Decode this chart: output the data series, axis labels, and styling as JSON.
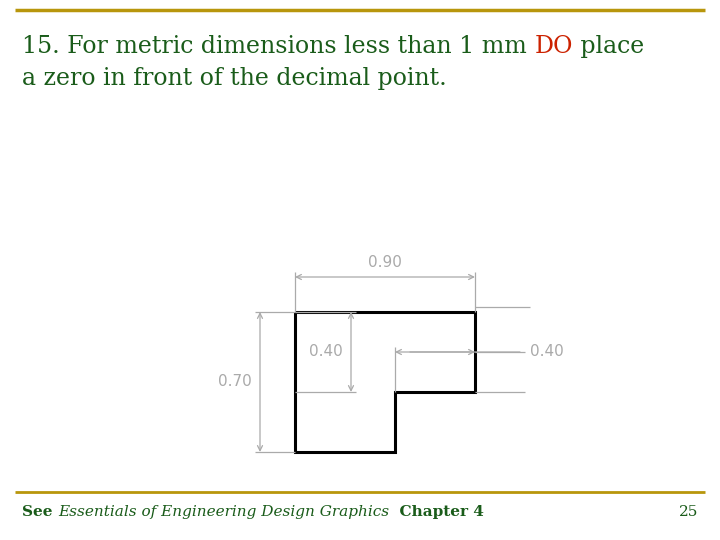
{
  "bg_color": "#ffffff",
  "border_color_top": "#b8960c",
  "border_color_bottom": "#b8960c",
  "title_black1": "15. For metric dimensions less than 1 mm ",
  "title_red": "DO",
  "title_black2": " place",
  "title_line2": "a zero in front of the decimal point.",
  "title_fontsize": 17,
  "title_color_black": "#1a5c1a",
  "title_color_red": "#cc2200",
  "footer_see": "See ",
  "footer_italic": "Essentials of Engineering Design Graphics",
  "footer_chapter": "  Chapter 4",
  "footer_fontsize": 11,
  "page_number": "25",
  "page_number_fontsize": 11,
  "dim_color": "#aaaaaa",
  "shape_color": "#000000",
  "shape_lw": 2.2,
  "dim_lw": 0.9,
  "dim_fontsize": 11,
  "label_090": "0.90",
  "label_040_right": "0.40",
  "label_040_vert": "0.40",
  "label_070": "0.70"
}
